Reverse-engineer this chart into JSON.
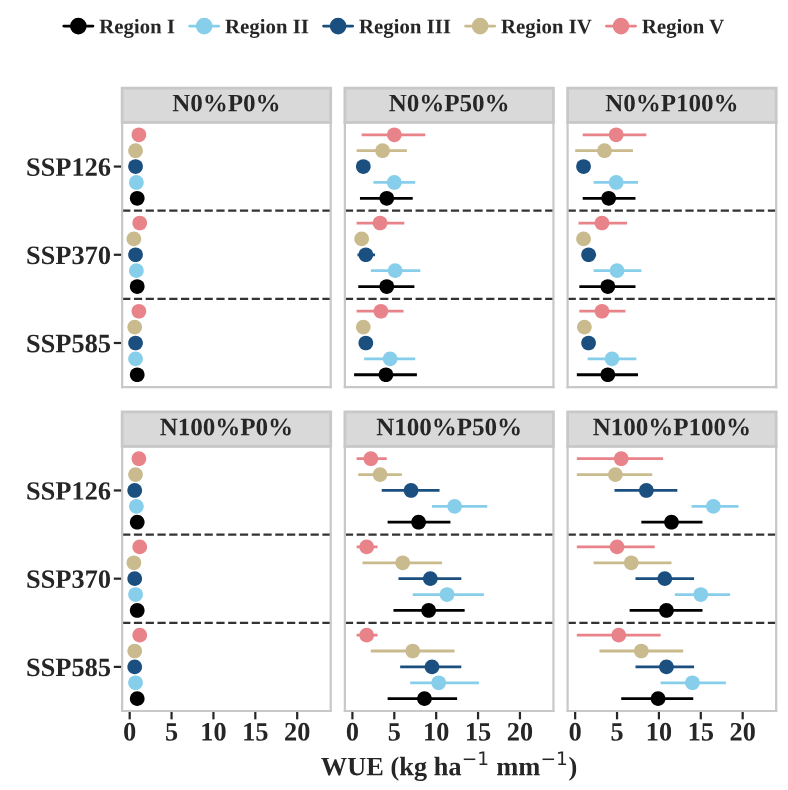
{
  "chart_data": [
    {
      "type": "scatter",
      "orientation": "horizontal",
      "title": "N0%P0%",
      "categories": [
        "SSP126",
        "SSP370",
        "SSP585"
      ],
      "xlim": [
        -0.9,
        24
      ],
      "xticks": [
        0,
        5,
        10,
        15,
        20
      ],
      "tick_labels": "y",
      "marker": "circle",
      "legend": "top",
      "series": [
        {
          "name": "Region I",
          "color": "#000000",
          "values": [
            0.9,
            0.9,
            0.9
          ]
        },
        {
          "name": "Region II",
          "color": "#87ceeb",
          "values": [
            0.8,
            0.8,
            0.7
          ]
        },
        {
          "name": "Region III",
          "color": "#1b4f80",
          "values": [
            0.7,
            0.7,
            0.7
          ]
        },
        {
          "name": "Region IV",
          "color": "#c9bb8e",
          "values": [
            0.7,
            0.5,
            0.6
          ]
        },
        {
          "name": "Region V",
          "color": "#e8838a",
          "values": [
            1.1,
            1.2,
            1.1
          ]
        }
      ]
    },
    {
      "type": "scatter",
      "orientation": "horizontal",
      "title": "N0%P50%",
      "categories": [
        null,
        null,
        null
      ],
      "xlim": [
        -0.9,
        24
      ],
      "xticks": [
        0,
        5,
        10,
        15,
        20
      ],
      "tick_labels": false,
      "marker": "circle",
      "series": [
        {
          "color": "#000000",
          "values": [
            4.1,
            4.1,
            4.0
          ],
          "errors": [
            [
              0.9,
              7.2
            ],
            [
              0.7,
              7.4
            ],
            [
              0.2,
              7.7
            ]
          ]
        },
        {
          "color": "#87ceeb",
          "values": [
            5.0,
            5.1,
            4.5
          ],
          "errors": [
            [
              2.5,
              7.5
            ],
            [
              2.2,
              8.1
            ],
            [
              1.4,
              7.5
            ]
          ]
        },
        {
          "color": "#1b4f80",
          "values": [
            1.3,
            1.6,
            1.6
          ],
          "errors": [
            null,
            [
              0.6,
              2.7
            ],
            null
          ]
        },
        {
          "color": "#c9bb8e",
          "values": [
            3.6,
            1.1,
            1.3
          ],
          "errors": [
            [
              0.5,
              6.5
            ],
            null,
            null
          ]
        },
        {
          "color": "#e8838a",
          "values": [
            5.0,
            3.3,
            3.4
          ],
          "errors": [
            [
              1.1,
              8.7
            ],
            [
              0.5,
              6.2
            ],
            [
              0.5,
              6.1
            ]
          ]
        }
      ]
    },
    {
      "type": "scatter",
      "orientation": "horizontal",
      "title": "N0%P100%",
      "categories": [
        null,
        null,
        null
      ],
      "xlim": [
        -0.9,
        24
      ],
      "xticks": [
        0,
        5,
        10,
        15,
        20
      ],
      "tick_labels": false,
      "marker": "circle",
      "series": [
        {
          "color": "#000000",
          "values": [
            4.0,
            3.9,
            3.9
          ],
          "errors": [
            [
              0.9,
              7.2
            ],
            [
              0.5,
              7.2
            ],
            [
              0.2,
              7.5
            ]
          ]
        },
        {
          "color": "#87ceeb",
          "values": [
            4.9,
            5.0,
            4.4
          ],
          "errors": [
            [
              2.2,
              7.5
            ],
            [
              2.2,
              7.9
            ],
            [
              1.5,
              7.3
            ]
          ]
        },
        {
          "color": "#1b4f80",
          "values": [
            1.0,
            1.6,
            1.6
          ],
          "errors": [
            null,
            [
              0.9,
              2.5
            ],
            null
          ]
        },
        {
          "color": "#c9bb8e",
          "values": [
            3.5,
            1.0,
            1.1
          ],
          "errors": [
            [
              0.0,
              6.9
            ],
            null,
            null
          ]
        },
        {
          "color": "#e8838a",
          "values": [
            4.9,
            3.2,
            3.2
          ],
          "errors": [
            [
              0.9,
              8.5
            ],
            [
              0.4,
              6.2
            ],
            [
              0.5,
              6.0
            ]
          ]
        }
      ]
    },
    {
      "type": "scatter",
      "orientation": "horizontal",
      "title": "N100%P0%",
      "categories": [
        "SSP126",
        "SSP370",
        "SSP585"
      ],
      "xlim": [
        -0.9,
        24
      ],
      "xticks": [
        0,
        5,
        10,
        15,
        20
      ],
      "marker": "circle",
      "series": [
        {
          "color": "#000000",
          "values": [
            0.9,
            0.9,
            0.9
          ]
        },
        {
          "color": "#87ceeb",
          "values": [
            0.8,
            0.7,
            0.7
          ]
        },
        {
          "color": "#1b4f80",
          "values": [
            0.6,
            0.6,
            0.6
          ]
        },
        {
          "color": "#c9bb8e",
          "values": [
            0.7,
            0.5,
            0.6
          ]
        },
        {
          "color": "#e8838a",
          "values": [
            1.1,
            1.2,
            1.2
          ]
        }
      ]
    },
    {
      "type": "scatter",
      "orientation": "horizontal",
      "title": "N100%P50%",
      "categories": [
        null,
        null,
        null
      ],
      "xlim": [
        -0.9,
        24
      ],
      "xticks": [
        0,
        5,
        10,
        15,
        20
      ],
      "tick_labels": "x",
      "xlabel": "WUE (kg ha$^{−1}$ mm$^{−1}$)",
      "marker": "circle",
      "series": [
        {
          "color": "#000000",
          "values": [
            7.9,
            9.1,
            8.6
          ],
          "errors": [
            [
              4.2,
              11.7
            ],
            [
              4.9,
              13.4
            ],
            [
              4.2,
              12.5
            ]
          ]
        },
        {
          "color": "#87ceeb",
          "values": [
            12.2,
            11.3,
            10.3
          ],
          "errors": [
            [
              9.5,
              16.1
            ],
            [
              7.2,
              15.7
            ],
            [
              6.9,
              15.1
            ]
          ]
        },
        {
          "color": "#1b4f80",
          "values": [
            7.0,
            9.3,
            9.5
          ],
          "errors": [
            [
              3.5,
              10.4
            ],
            [
              5.5,
              13.0
            ],
            [
              5.7,
              13.0
            ]
          ]
        },
        {
          "color": "#c9bb8e",
          "values": [
            3.3,
            6.0,
            7.2
          ],
          "errors": [
            [
              0.7,
              5.9
            ],
            [
              1.2,
              10.7
            ],
            [
              2.2,
              12.2
            ]
          ]
        },
        {
          "color": "#e8838a",
          "values": [
            2.2,
            1.7,
            1.7
          ],
          "errors": [
            [
              0.5,
              4.1
            ],
            [
              0.5,
              3.0
            ],
            [
              0.5,
              3.0
            ]
          ]
        }
      ]
    },
    {
      "type": "scatter",
      "orientation": "horizontal",
      "title": "N100%P100%",
      "categories": [
        null,
        null,
        null
      ],
      "xlim": [
        -0.9,
        24
      ],
      "xticks": [
        0,
        5,
        10,
        15,
        20
      ],
      "tick_labels": "x",
      "marker": "circle",
      "series": [
        {
          "color": "#000000",
          "values": [
            11.5,
            10.9,
            9.9
          ],
          "errors": [
            [
              7.9,
              15.2
            ],
            [
              6.5,
              15.2
            ],
            [
              5.5,
              14.1
            ]
          ]
        },
        {
          "color": "#87ceeb",
          "values": [
            16.5,
            15.0,
            14.0
          ],
          "errors": [
            [
              13.9,
              19.5
            ],
            [
              11.9,
              18.5
            ],
            [
              10.2,
              18.0
            ]
          ]
        },
        {
          "color": "#1b4f80",
          "values": [
            8.5,
            10.7,
            10.9
          ],
          "errors": [
            [
              4.7,
              12.2
            ],
            [
              7.2,
              14.2
            ],
            [
              7.2,
              14.2
            ]
          ]
        },
        {
          "color": "#c9bb8e",
          "values": [
            4.8,
            6.7,
            7.9
          ],
          "errors": [
            [
              0.2,
              9.2
            ],
            [
              2.2,
              11.5
            ],
            [
              2.9,
              12.9
            ]
          ]
        },
        {
          "color": "#e8838a",
          "values": [
            5.5,
            5.0,
            5.2
          ],
          "errors": [
            [
              0.2,
              10.5
            ],
            [
              0.2,
              9.5
            ],
            [
              0.2,
              10.2
            ]
          ]
        }
      ]
    }
  ]
}
